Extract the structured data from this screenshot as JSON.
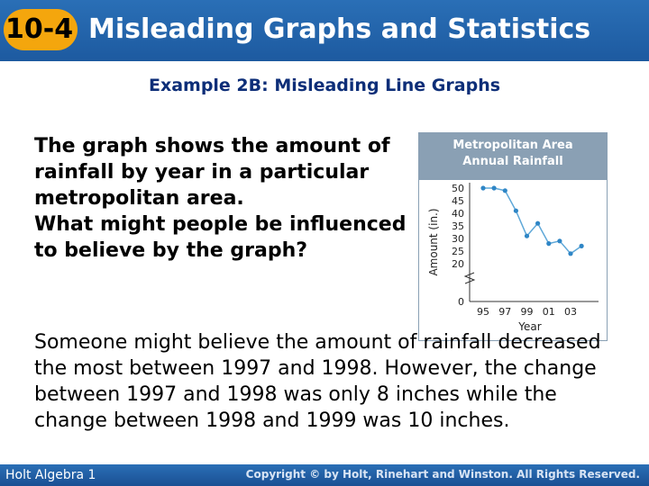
{
  "header": {
    "badge": "10-4",
    "title": "Misleading Graphs and Statistics",
    "color": "#2a6fb6",
    "badge_color": "#f4a60d"
  },
  "subtitle": "Example 2B: Misleading Line Graphs",
  "question": {
    "line1": "The graph shows the amount of rainfall by year in a particular metropolitan area.",
    "line2": "What might people be influenced to believe by the graph?"
  },
  "answer": "Someone might believe the amount of rainfall decreased the most between 1997 and 1998. However, the change between 1997 and 1998 was only 8 inches while the change between 1998 and 1999 was 10 inches.",
  "chart_data": {
    "type": "line",
    "title_line1": "Metropolitan Area",
    "title_line2": "Annual Rainfall",
    "xlabel": "Year",
    "ylabel": "Amount (in.)",
    "x_tick_labels": [
      "95",
      "97",
      "99",
      "01",
      "03"
    ],
    "y_tick_labels": [
      "0",
      "20",
      "25",
      "30",
      "35",
      "40",
      "45",
      "50"
    ],
    "x": [
      1995,
      1996,
      1997,
      1998,
      1999,
      2000,
      2001,
      2002,
      2003,
      2004
    ],
    "values": [
      50,
      50,
      49,
      41,
      31,
      36,
      28,
      29,
      24,
      27
    ],
    "title_bg": "#8aa0b4",
    "line_color": "#5fa8d8",
    "point_color": "#2f86c6"
  },
  "footer": {
    "left": "Holt Algebra 1",
    "right": "Copyright © by Holt, Rinehart and Winston. All Rights Reserved."
  }
}
